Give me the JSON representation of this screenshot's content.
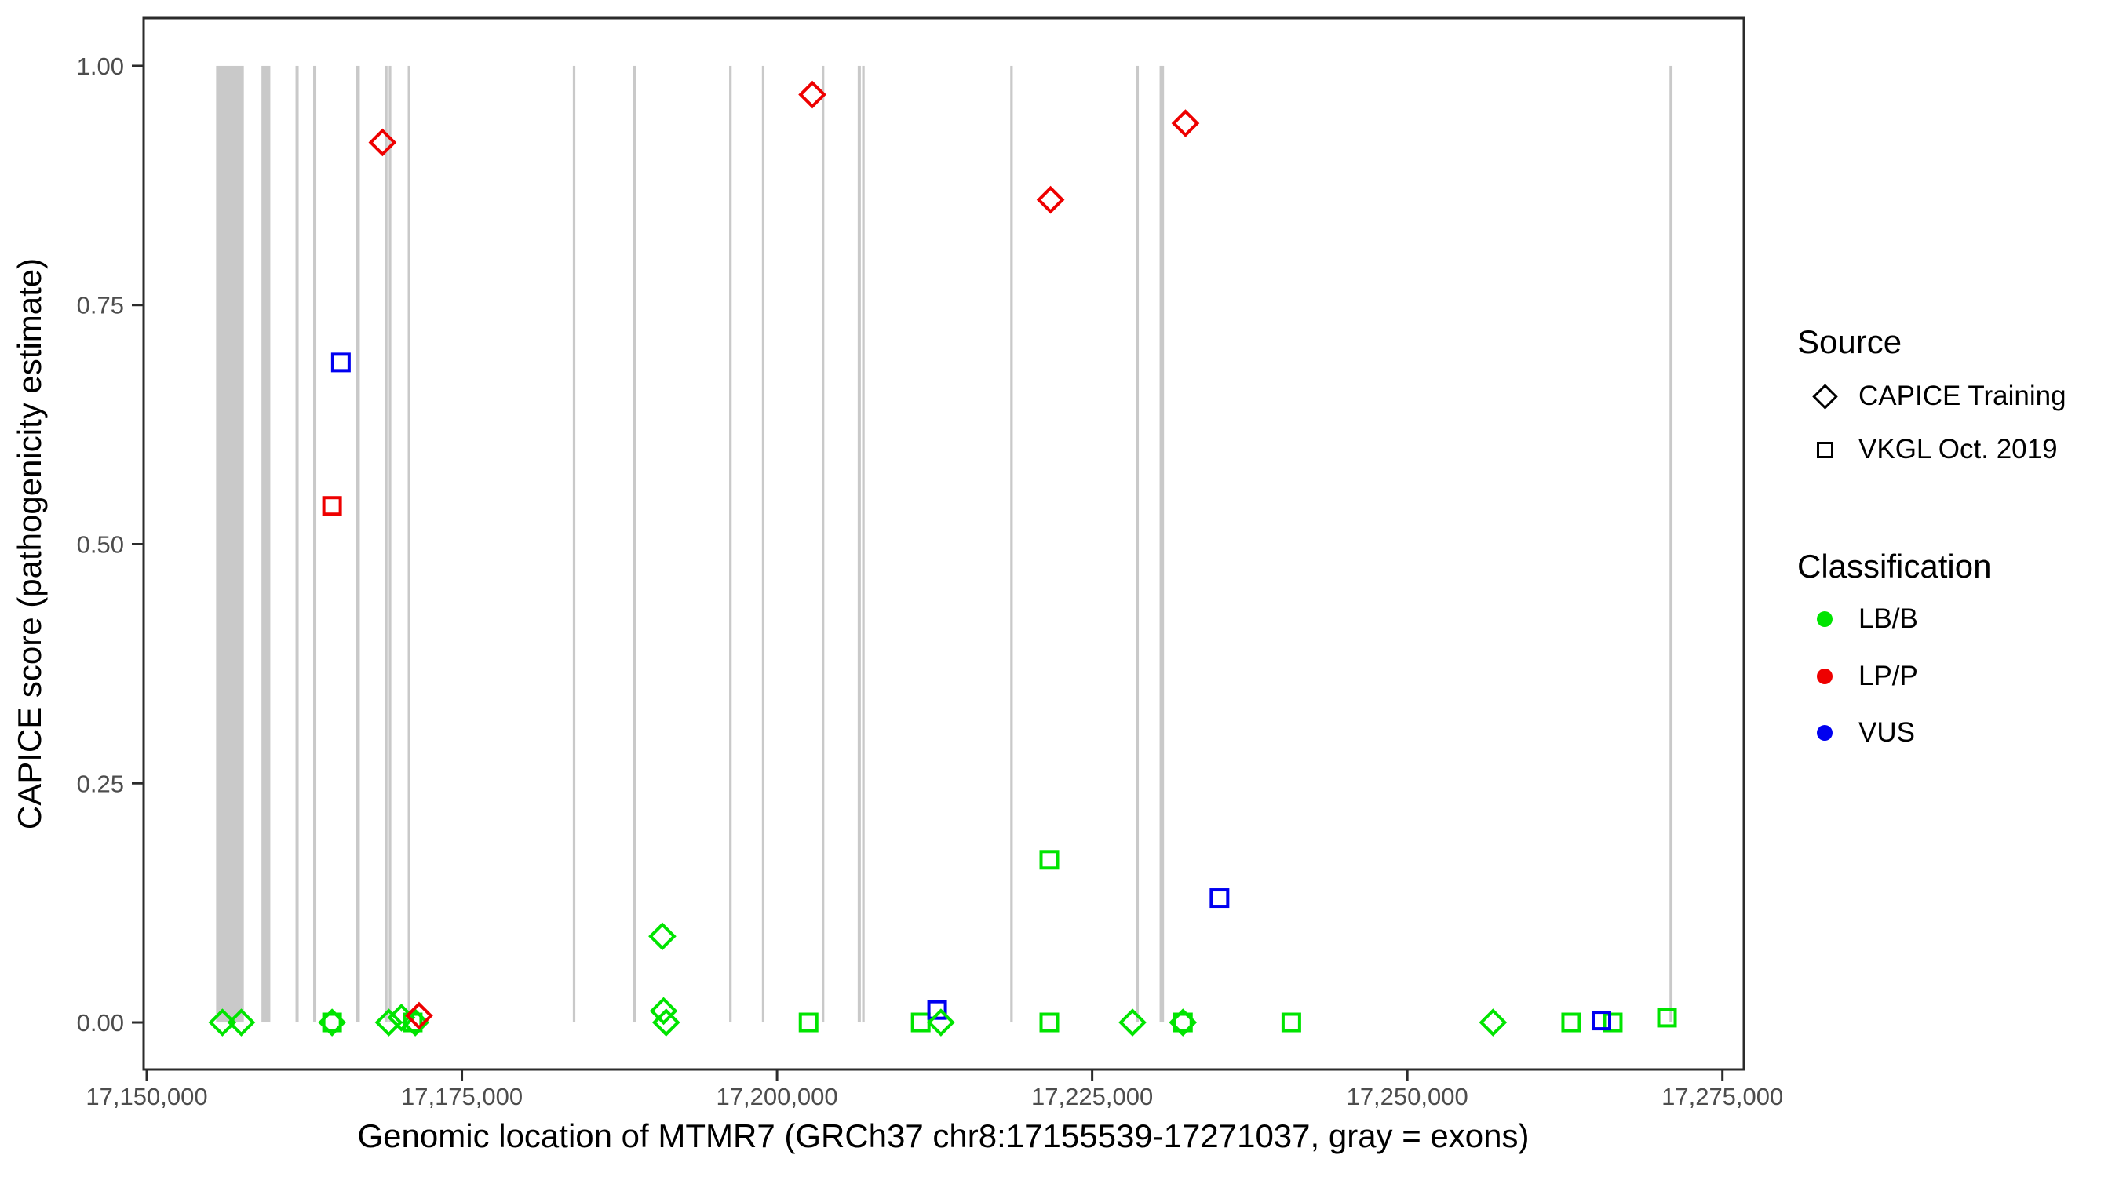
{
  "legend": {
    "source": {
      "title": "Source",
      "items": [
        {
          "label": "CAPICE Training",
          "marker": "diamond"
        },
        {
          "label": "VKGL Oct. 2019",
          "marker": "square"
        }
      ]
    },
    "classification": {
      "title": "Classification",
      "items": [
        {
          "label": "LB/B",
          "color": "#00E400"
        },
        {
          "label": "LP/P",
          "color": "#EE0000"
        },
        {
          "label": "VUS",
          "color": "#0000F0"
        }
      ]
    }
  },
  "chart_data": {
    "type": "scatter",
    "title": "",
    "xlabel": "Genomic location of MTMR7 (GRCh37 chr8:17155539-17271037, gray = exons)",
    "ylabel": "CAPICE score (pathogenicity estimate)",
    "xlim": [
      17149750,
      17276700
    ],
    "ylim": [
      -0.0492,
      1.05
    ],
    "grid": false,
    "legend_position": "right",
    "x_ticks": [
      {
        "value": 17150000,
        "label": "17,150,000"
      },
      {
        "value": 17175000,
        "label": "17,175,000"
      },
      {
        "value": 17200000,
        "label": "17,200,000"
      },
      {
        "value": 17225000,
        "label": "17,225,000"
      },
      {
        "value": 17250000,
        "label": "17,250,000"
      },
      {
        "value": 17275000,
        "label": "17,275,000"
      }
    ],
    "y_ticks": [
      {
        "value": 0.0,
        "label": "0.00"
      },
      {
        "value": 0.25,
        "label": "0.25"
      },
      {
        "value": 0.5,
        "label": "0.50"
      },
      {
        "value": 0.75,
        "label": "0.75"
      },
      {
        "value": 1.0,
        "label": "1.00"
      }
    ],
    "exon_color": "#C9C9C9",
    "exons": [
      [
        17155500,
        17157700
      ],
      [
        17159100,
        17159800
      ],
      [
        17161800,
        17162050
      ],
      [
        17163200,
        17163450
      ],
      [
        17166600,
        17166900
      ],
      [
        17168900,
        17169100
      ],
      [
        17169200,
        17169400
      ],
      [
        17170700,
        17170900
      ],
      [
        17183800,
        17184000
      ],
      [
        17188600,
        17188850
      ],
      [
        17196200,
        17196400
      ],
      [
        17198800,
        17199000
      ],
      [
        17203550,
        17203750
      ],
      [
        17206400,
        17206650
      ],
      [
        17206750,
        17206950
      ],
      [
        17218500,
        17218700
      ],
      [
        17228500,
        17228700
      ],
      [
        17230350,
        17230700
      ],
      [
        17270800,
        17271037
      ]
    ],
    "series": [
      {
        "name": "VKGL Oct. 2019 / LB/B",
        "source": "VKGL Oct. 2019",
        "classification": "LB/B",
        "marker": "square",
        "color": "#00E400",
        "points": [
          [
            17164700,
            0.0
          ],
          [
            17171100,
            0.0
          ],
          [
            17202500,
            0.0
          ],
          [
            17211400,
            0.0
          ],
          [
            17221600,
            0.17
          ],
          [
            17221600,
            0.0
          ],
          [
            17232200,
            0.0
          ],
          [
            17240800,
            0.0
          ],
          [
            17263000,
            0.0
          ],
          [
            17266300,
            0.0
          ],
          [
            17270600,
            0.005
          ]
        ]
      },
      {
        "name": "VKGL Oct. 2019 / VUS",
        "source": "VKGL Oct. 2019",
        "classification": "VUS",
        "marker": "square",
        "color": "#0000F0",
        "points": [
          [
            17165400,
            0.69
          ],
          [
            17212700,
            0.013
          ],
          [
            17235100,
            0.13
          ],
          [
            17265400,
            0.002
          ]
        ]
      },
      {
        "name": "VKGL Oct. 2019 / LP/P",
        "source": "VKGL Oct. 2019",
        "classification": "LP/P",
        "marker": "square",
        "color": "#EE0000",
        "points": [
          [
            17164700,
            0.54
          ]
        ]
      },
      {
        "name": "CAPICE Training / LB/B",
        "source": "CAPICE Training",
        "classification": "LB/B",
        "marker": "diamond",
        "color": "#00E400",
        "points": [
          [
            17156000,
            0.0
          ],
          [
            17157500,
            0.0
          ],
          [
            17164700,
            0.0
          ],
          [
            17169200,
            0.0
          ],
          [
            17170200,
            0.005
          ],
          [
            17171300,
            0.0
          ],
          [
            17190900,
            0.09
          ],
          [
            17191000,
            0.012
          ],
          [
            17191200,
            0.0
          ],
          [
            17213000,
            0.0
          ],
          [
            17228200,
            0.0
          ],
          [
            17232200,
            0.0
          ],
          [
            17256800,
            0.0
          ]
        ]
      },
      {
        "name": "CAPICE Training / LP/P",
        "source": "CAPICE Training",
        "classification": "LP/P",
        "marker": "diamond",
        "color": "#EE0000",
        "points": [
          [
            17168700,
            0.92
          ],
          [
            17171600,
            0.007
          ],
          [
            17202800,
            0.97
          ],
          [
            17221700,
            0.86
          ],
          [
            17232400,
            0.94
          ]
        ]
      }
    ]
  }
}
